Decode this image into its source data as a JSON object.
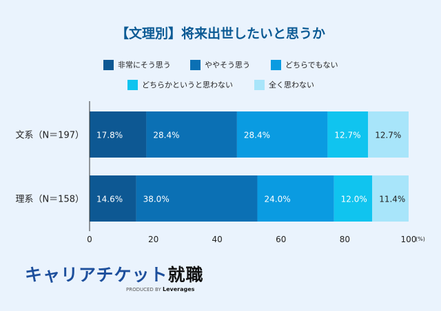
{
  "chart_data": {
    "type": "bar",
    "orientation": "horizontal",
    "stacked": true,
    "title": "【文理別】将来出世したいと思うか",
    "categories": [
      "文系（N＝197）",
      "理系（N＝158）"
    ],
    "series": [
      {
        "name": "非常にそう思う",
        "color": "#0d5893",
        "values": [
          17.8,
          14.6
        ]
      },
      {
        "name": "ややそう思う",
        "color": "#0b70b4",
        "values": [
          28.4,
          38.0
        ]
      },
      {
        "name": "どちらでもない",
        "color": "#0a9be1",
        "values": [
          28.4,
          24.0
        ]
      },
      {
        "name": "どちらかというと思わない",
        "color": "#10c4ef",
        "values": [
          12.7,
          12.0
        ]
      },
      {
        "name": "全く思わない",
        "color": "#a8e5fa",
        "values": [
          12.7,
          11.4
        ]
      }
    ],
    "xlim": [
      0,
      100
    ],
    "xticks": [
      0,
      20,
      40,
      60,
      80,
      100
    ],
    "xunit": "(%)",
    "legend": "top"
  },
  "logo": {
    "main": "キャリアチケット",
    "sub": "就職",
    "produced": "PRODUCED BY",
    "brand": "Leverages"
  }
}
